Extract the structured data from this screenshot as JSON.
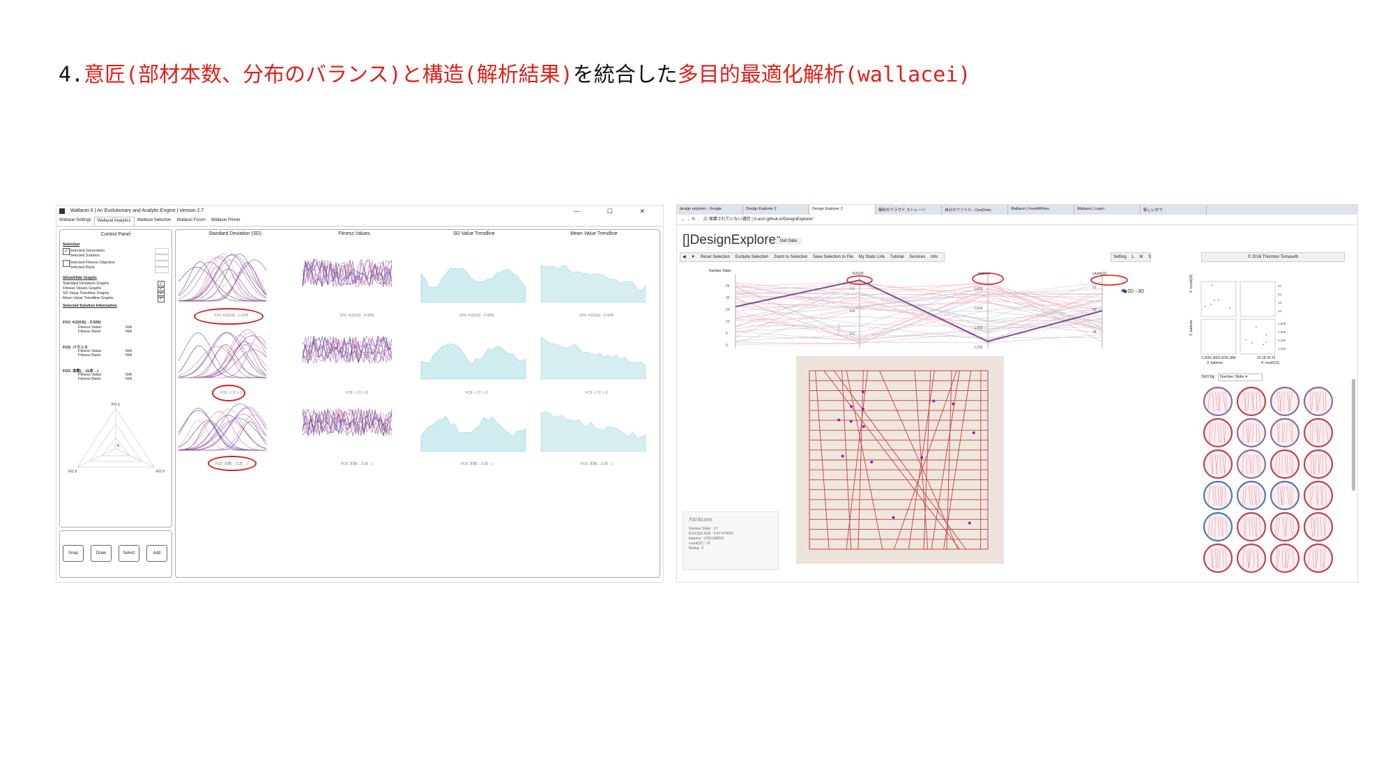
{
  "slide": {
    "number": "4.",
    "title_part1_red": "意匠(部材本数、分布のバランス)と構造(解析結果)",
    "title_part2_black": "を統合した",
    "title_part3_red": "多目的最適化解析(wallacei)"
  },
  "wallacei": {
    "window_title": "Wallacei X  |  An Evolutionary and Analytic Engine  |  Version 2.7",
    "window_controls": "—  ☐  ✕",
    "tabs": [
      "Wallacei Settings",
      "Wallacei Analytics",
      "Wallacei Selection",
      "Wallacei Forum",
      "Wallacei Primer"
    ],
    "control_panel": {
      "title": "Control Panel",
      "selection_heading": "Selection",
      "selected_generation": "Selected Generation",
      "selected_solution": "Selected Solution",
      "selected_fitness_objective": "Selected Fitness Objective",
      "selected_rank": "Selected Rank",
      "show_hide_heading": "Show/Hide Graphs",
      "graph_toggles": [
        "Standard Deviation Graphs",
        "Fitness Values Graphs",
        "SD Value Trendline Graphs",
        "Mean Value Trendline Graphs"
      ],
      "solution_info_heading": "Selected Solution Information",
      "fo1": "FO1: K2(X3)(→0.429)",
      "fo2": "FO2: バランス",
      "fo3": "FO3: 本数(→11本→)",
      "fitness_value": "Fitness Value:",
      "fitness_rank": "Fitness Rank:",
      "na": "N/A",
      "radar_labels": [
        "FO 1",
        "FO 2",
        "FO 3"
      ],
      "radar_center": "0",
      "buttons": [
        "Snap",
        "Draw",
        "Select",
        "Add"
      ]
    },
    "graph_headers": [
      "Standard Deviation (SD)",
      "Fitness Values",
      "SD Value Trendline",
      "Mean Value Trendline"
    ],
    "row_captions": [
      "FO1: K2(X3)(→0.429)",
      "FO2: バランス",
      "FO3: 本数(→11本→)"
    ]
  },
  "design_explorer": {
    "browser_tabs": [
      "design explorer - Google",
      "Design Explorer 2",
      "Design Explorer 2",
      "無料のクラウド ストレージ",
      "自分のファイル - OneDrive",
      "Wallacei | Food4Rhino",
      "Wallacei | Learn",
      "新しいタブ"
    ],
    "address": "⚠ 保護されていない通信  |  tt-acm.github.io/DesignExplorer/",
    "logo": "DesignExplorer",
    "get_data": "Get Data",
    "toolbar": [
      "◀",
      "▼",
      "Reset Selection",
      "Exclude Selection",
      "Zoom to Selection",
      "Save Selection to File",
      "My Static Link",
      "Tutorial",
      "Services",
      "Info"
    ],
    "setting": "Setting",
    "size_options": [
      "L",
      "M",
      "S"
    ],
    "copyright": "© 2016 Thornton Tomasetti",
    "parallel_axes": [
      "Number Slider",
      "K2(X3)",
      "balance",
      "count(11)"
    ],
    "axis_ticks": {
      "number_slider": [
        "25",
        "20",
        "15",
        "10",
        "5",
        "0"
      ],
      "k2": [
        "0.6",
        "0.4",
        "0.2"
      ],
      "balance": [
        "1,800",
        "1,600",
        "1,400",
        "1,200"
      ],
      "count": [
        "22",
        "20",
        "18"
      ]
    },
    "view_toggle": "◉2D ○3D",
    "scatter": {
      "y_labels": [
        "4: count(11)",
        "3: balance"
      ],
      "x_labels": [
        "3: balance",
        "4: count(11)"
      ],
      "ticks_y_top": [
        "22",
        "20",
        "18",
        "16"
      ],
      "ticks_y_bottom": [
        "1,800",
        "1,600",
        "1,400",
        "1,200"
      ],
      "ticks_x_left": "1,2001,4001,6001,800",
      "ticks_x_right": "16  18  20  22"
    },
    "sort_by": "Sort by:",
    "sort_value": "Number Slider",
    "attributes": {
      "title": "Attributes",
      "rows": [
        "Number Slider : 17",
        "K2(X3)(0.429) : 0.677475651",
        "balance : 1256.848307",
        "count(11) : 19",
        "Rating : 0"
      ]
    },
    "colors": {
      "accent_red": "#d32f3f",
      "accent_blue": "#5b7bb0",
      "purple": "#7a4a88"
    }
  }
}
